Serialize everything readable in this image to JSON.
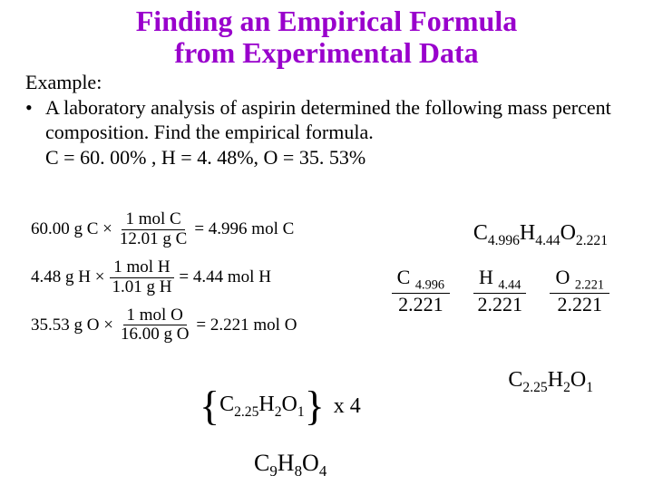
{
  "title_line1": "Finding an Empirical Formula",
  "title_line2": "from Experimental Data",
  "example_label": "Example:",
  "bullet": "•",
  "body": "A laboratory analysis of aspirin determined the following mass percent composition.  Find the empirical formula.",
  "percents": "C = 60. 00% , H = 4. 48%, O = 35. 53%",
  "calc": {
    "c": {
      "lhs": "60.00 g C ×",
      "num": "1 mol C",
      "den": "12.01 g C",
      "eq": "= 4.996 mol C"
    },
    "h": {
      "lhs": "4.48 g H ×",
      "num": "1 mol H",
      "den": "1.01 g H",
      "eq": "= 4.44 mol H"
    },
    "o": {
      "lhs": "35.53 g O ×",
      "num": "1 mol O",
      "den": "16.00 g O",
      "eq": "= 2.221 mol O"
    }
  },
  "ratio": {
    "c_e": "C",
    "c_s": "4.996",
    "h_e": "H",
    "h_s": "4.44",
    "o_e": "O",
    "o_s": "2.221"
  },
  "divide": {
    "c": {
      "top_e": "C",
      "top_s": "4.996",
      "bot": "2.221"
    },
    "h": {
      "top_e": "H",
      "top_s": "4.44",
      "bot": "2.221"
    },
    "o": {
      "top_e": "O",
      "top_s": "2.221",
      "bot": "2.221"
    }
  },
  "reduced": {
    "c_e": "C",
    "c_s": "2.25",
    "h_e": "H",
    "h_s": "2",
    "o_e": "O",
    "o_s": "1"
  },
  "brace_open": "{",
  "brace_close": "}",
  "x4": "x 4",
  "final": {
    "c_e": "C",
    "c_s": "9",
    "h_e": "H",
    "h_s": "8",
    "o_e": "O",
    "o_s": "4"
  },
  "colors": {
    "title": "#9900cc",
    "text": "#000000",
    "bg": "#ffffff"
  }
}
